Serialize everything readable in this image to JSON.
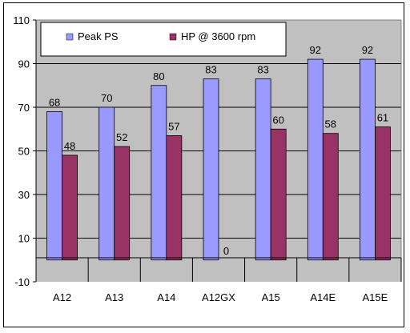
{
  "chart_data": {
    "type": "bar",
    "categories": [
      "A12",
      "A13",
      "A14",
      "A12GX",
      "A15",
      "A14E",
      "A15E"
    ],
    "series": [
      {
        "name": "Peak PS",
        "values": [
          68,
          70,
          80,
          83,
          83,
          92,
          92
        ],
        "color": "#9999ff"
      },
      {
        "name": "HP @ 3600 rpm",
        "values": [
          48,
          52,
          57,
          0,
          60,
          58,
          61
        ],
        "color": "#993366"
      }
    ],
    "title": "",
    "xlabel": "",
    "ylabel": "",
    "ylim": [
      -10,
      110
    ],
    "yticks": [
      "110",
      "90",
      "70",
      "50",
      "30",
      "10",
      "-10"
    ],
    "grid": true,
    "legend_position": "top-left",
    "plot_background": "#c0c0c0"
  }
}
